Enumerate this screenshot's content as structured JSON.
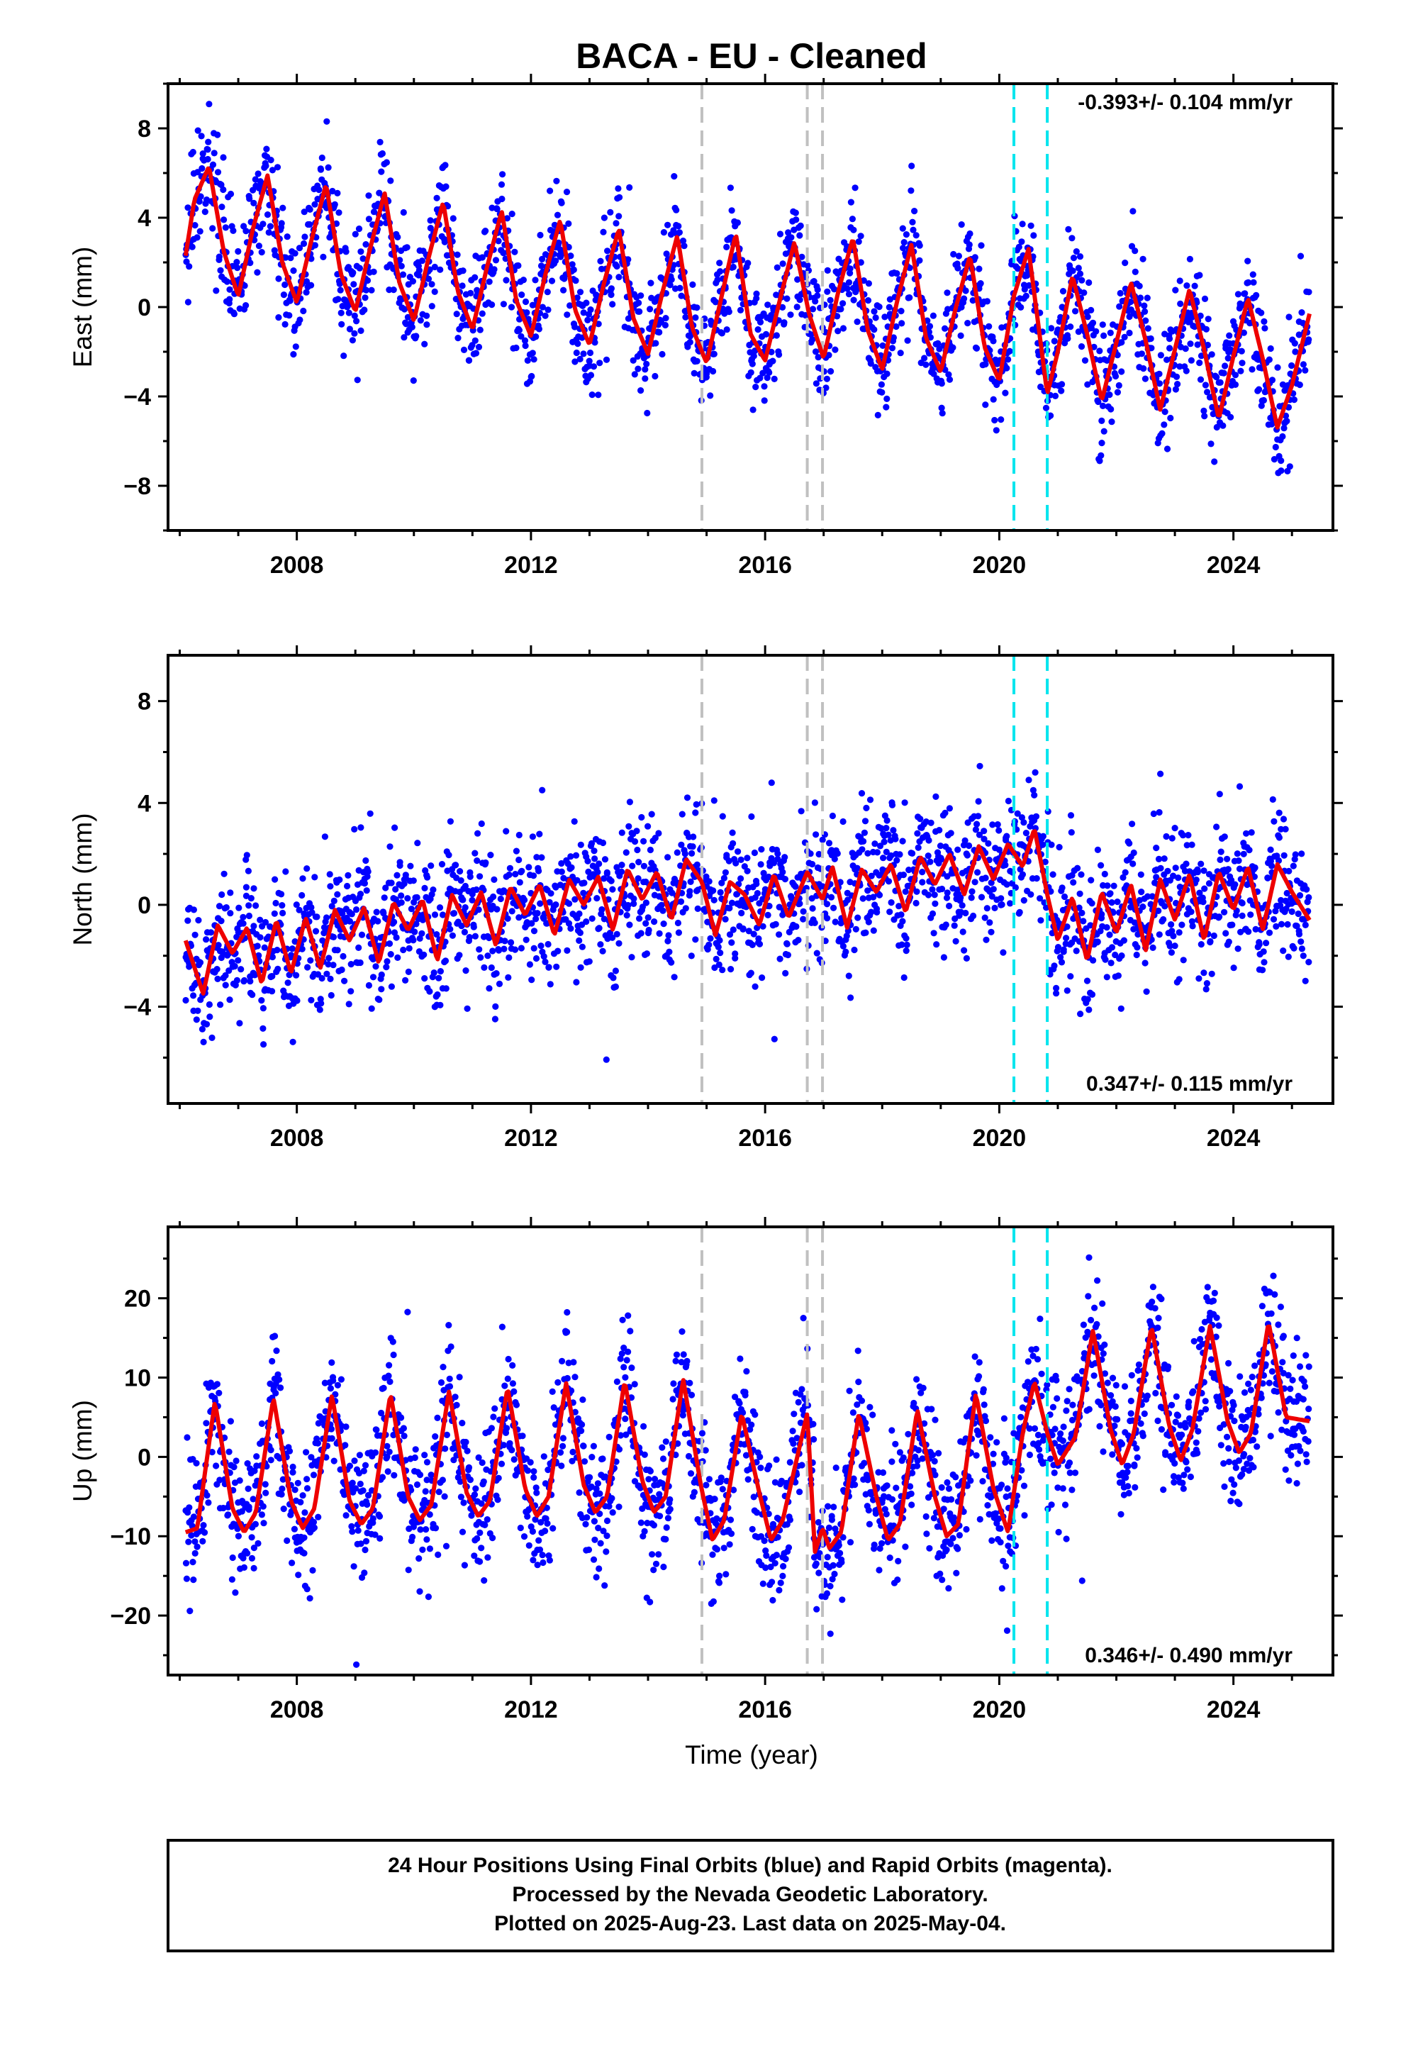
{
  "title": "BACA  - EU - Cleaned",
  "xlabel": "Time (year)",
  "x_ticks": [
    "2008",
    "2012",
    "2016",
    "2020",
    "2024"
  ],
  "colors": {
    "final_orbits": "#0000ff",
    "model": "#ee0000",
    "gray_lines": "#c0c0c0",
    "cyan_lines": "#00e5ee"
  },
  "gray_offsets": [
    2014.92,
    2016.72,
    2016.98
  ],
  "cyan_offsets": [
    2020.25,
    2020.82
  ],
  "footer": {
    "line1": "24 Hour Positions Using Final Orbits (blue) and Rapid Orbits (magenta).",
    "line2": "Processed by the Nevada Geodetic Laboratory.",
    "line3": "Plotted on 2025-Aug-23. Last data on 2025-May-04."
  },
  "chart_data": [
    {
      "type": "scatter",
      "name": "east",
      "ylabel": "East (mm)",
      "rate_text": "-0.393+/- 0.104 mm/yr",
      "rate_position": "top-right",
      "xlim": [
        2005.8,
        2025.7
      ],
      "ylim": [
        -10,
        10
      ],
      "y_ticks": [
        "8",
        "4",
        "0",
        "−4",
        "−8"
      ],
      "y_tick_values": [
        8,
        4,
        0,
        -4,
        -8
      ],
      "grid": false,
      "model_curve": {
        "x": [
          2006.1,
          2006.25,
          2006.5,
          2006.75,
          2007.0,
          2007.25,
          2007.5,
          2007.75,
          2008.0,
          2008.25,
          2008.5,
          2008.75,
          2009.0,
          2009.25,
          2009.5,
          2009.75,
          2010.0,
          2010.25,
          2010.5,
          2010.75,
          2011.0,
          2011.25,
          2011.5,
          2011.75,
          2012.0,
          2012.25,
          2012.5,
          2012.75,
          2013.0,
          2013.25,
          2013.5,
          2013.75,
          2014.0,
          2014.25,
          2014.5,
          2014.75,
          2015.0,
          2015.25,
          2015.5,
          2015.75,
          2016.0,
          2016.25,
          2016.5,
          2016.75,
          2017.0,
          2017.25,
          2017.5,
          2017.75,
          2018.0,
          2018.25,
          2018.5,
          2018.75,
          2019.0,
          2019.25,
          2019.5,
          2019.75,
          2020.0,
          2020.25,
          2020.5,
          2020.82,
          2021.0,
          2021.25,
          2021.5,
          2021.75,
          2022.0,
          2022.25,
          2022.5,
          2022.75,
          2023.0,
          2023.25,
          2023.5,
          2023.75,
          2024.0,
          2024.25,
          2024.5,
          2024.75,
          2025.0,
          2025.3
        ],
        "y": [
          2.3,
          4.8,
          6.3,
          2.5,
          0.5,
          3.5,
          5.9,
          2.0,
          0.2,
          3.0,
          5.5,
          1.5,
          -0.2,
          2.6,
          5.1,
          1.1,
          -0.6,
          2.2,
          4.7,
          0.7,
          -1.0,
          1.8,
          4.3,
          0.3,
          -1.3,
          1.5,
          3.9,
          -0.1,
          -1.7,
          1.1,
          3.5,
          -0.5,
          -2.1,
          0.7,
          3.2,
          -0.9,
          -2.5,
          0.4,
          3.3,
          -1.2,
          -2.4,
          0.3,
          2.9,
          -0.3,
          -2.3,
          0.7,
          3.1,
          -1.0,
          -2.8,
          0.2,
          2.8,
          -1.4,
          -2.9,
          -0.1,
          2.3,
          -1.8,
          -3.3,
          0.5,
          2.6,
          -3.9,
          -2.0,
          1.4,
          -1.2,
          -4.2,
          -1.6,
          1.1,
          -1.5,
          -4.6,
          -1.9,
          0.8,
          -1.9,
          -5.0,
          -2.2,
          0.4,
          -2.3,
          -5.4,
          -3.5,
          -0.3
        ]
      }
    },
    {
      "type": "scatter",
      "name": "north",
      "ylabel": "North (mm)",
      "rate_text": "0.347+/- 0.115 mm/yr",
      "rate_position": "bottom-right",
      "xlim": [
        2005.8,
        2025.7
      ],
      "ylim": [
        -7.8,
        9.8
      ],
      "y_ticks": [
        "8",
        "4",
        "0",
        "−4"
      ],
      "y_tick_values": [
        8,
        4,
        0,
        -4
      ],
      "grid": false,
      "model_curve": {
        "x": [
          2006.1,
          2006.4,
          2006.65,
          2006.9,
          2007.15,
          2007.4,
          2007.65,
          2007.9,
          2008.15,
          2008.4,
          2008.65,
          2008.9,
          2009.15,
          2009.4,
          2009.65,
          2009.9,
          2010.15,
          2010.4,
          2010.65,
          2010.9,
          2011.15,
          2011.4,
          2011.65,
          2011.9,
          2012.15,
          2012.4,
          2012.65,
          2012.9,
          2013.15,
          2013.4,
          2013.65,
          2013.9,
          2014.15,
          2014.4,
          2014.65,
          2014.92,
          2015.15,
          2015.4,
          2015.65,
          2015.9,
          2016.15,
          2016.4,
          2016.72,
          2016.98,
          2017.15,
          2017.4,
          2017.65,
          2017.9,
          2018.15,
          2018.4,
          2018.65,
          2018.9,
          2019.15,
          2019.4,
          2019.65,
          2019.9,
          2020.15,
          2020.4,
          2020.6,
          2020.82,
          2021.0,
          2021.25,
          2021.5,
          2021.75,
          2022.0,
          2022.25,
          2022.5,
          2022.75,
          2023.0,
          2023.25,
          2023.5,
          2023.75,
          2024.0,
          2024.25,
          2024.5,
          2024.75,
          2025.0,
          2025.3
        ],
        "y": [
          -1.4,
          -3.5,
          -0.8,
          -1.9,
          -0.9,
          -3.1,
          -0.6,
          -2.7,
          -0.5,
          -2.5,
          -0.2,
          -1.4,
          -0.1,
          -2.3,
          0.1,
          -1.0,
          0.2,
          -2.2,
          0.4,
          -0.8,
          0.5,
          -1.6,
          0.7,
          -0.4,
          0.8,
          -1.2,
          1.0,
          0.0,
          1.1,
          -1.0,
          1.4,
          0.2,
          1.3,
          -0.6,
          1.8,
          0.9,
          -1.2,
          0.9,
          0.4,
          -0.8,
          1.2,
          -0.5,
          1.3,
          0.2,
          1.5,
          -0.9,
          1.4,
          0.5,
          1.6,
          -0.3,
          1.9,
          0.8,
          2.0,
          0.4,
          2.3,
          1.0,
          2.4,
          1.5,
          3.0,
          0.4,
          -1.4,
          0.3,
          -2.2,
          0.5,
          -1.1,
          0.8,
          -1.8,
          1.0,
          -0.6,
          1.2,
          -1.4,
          1.3,
          -0.2,
          1.5,
          -1.0,
          1.6,
          0.5,
          -0.6
        ]
      }
    },
    {
      "type": "scatter",
      "name": "up",
      "ylabel": "Up (mm)",
      "rate_text": "0.346+/- 0.490 mm/yr",
      "rate_position": "bottom-right",
      "xlim": [
        2005.8,
        2025.7
      ],
      "ylim": [
        -27.5,
        29
      ],
      "y_ticks": [
        "20",
        "10",
        "0",
        "−10",
        "−20"
      ],
      "y_tick_values": [
        20,
        10,
        0,
        -10,
        -20
      ],
      "grid": false,
      "model_curve": {
        "x": [
          2006.1,
          2006.3,
          2006.6,
          2006.9,
          2007.1,
          2007.3,
          2007.6,
          2007.9,
          2008.1,
          2008.3,
          2008.6,
          2008.9,
          2009.1,
          2009.3,
          2009.6,
          2009.9,
          2010.1,
          2010.3,
          2010.6,
          2010.9,
          2011.1,
          2011.3,
          2011.6,
          2011.9,
          2012.1,
          2012.3,
          2012.6,
          2012.9,
          2013.1,
          2013.3,
          2013.6,
          2013.9,
          2014.1,
          2014.3,
          2014.6,
          2014.9,
          2015.1,
          2015.3,
          2015.6,
          2015.9,
          2016.1,
          2016.3,
          2016.72,
          2016.85,
          2016.98,
          2017.1,
          2017.3,
          2017.6,
          2017.9,
          2018.1,
          2018.3,
          2018.6,
          2018.9,
          2019.1,
          2019.3,
          2019.6,
          2019.9,
          2020.15,
          2020.4,
          2020.6,
          2020.82,
          2021.0,
          2021.3,
          2021.6,
          2021.9,
          2022.1,
          2022.3,
          2022.6,
          2022.9,
          2023.1,
          2023.3,
          2023.6,
          2023.9,
          2024.1,
          2024.3,
          2024.6,
          2024.9,
          2025.3
        ],
        "y": [
          -9.5,
          -9.0,
          7.0,
          -6.5,
          -9.5,
          -7.0,
          7.5,
          -5.5,
          -9.0,
          -6.5,
          7.8,
          -5.5,
          -8.5,
          -6.5,
          8.0,
          -5.0,
          -8.0,
          -6.0,
          8.3,
          -4.5,
          -7.5,
          -5.5,
          8.8,
          -4.0,
          -7.5,
          -5.0,
          9.3,
          -3.5,
          -7.0,
          -5.0,
          9.6,
          -3.0,
          -7.0,
          -5.0,
          9.8,
          -3.5,
          -10.5,
          -8.0,
          5.5,
          -4.5,
          -10.5,
          -8.0,
          5.5,
          -12.0,
          -9.0,
          -11.5,
          -9.5,
          5.5,
          -5.0,
          -10.5,
          -8.5,
          6.0,
          -5.0,
          -10.0,
          -8.5,
          8.0,
          -4.0,
          -9.5,
          3.0,
          9.5,
          3.0,
          -1.0,
          2.5,
          16.0,
          3.5,
          -1.0,
          3.0,
          16.5,
          4.0,
          -0.5,
          3.5,
          16.5,
          4.5,
          0.5,
          3.0,
          17.0,
          5.0,
          4.5
        ]
      }
    }
  ]
}
